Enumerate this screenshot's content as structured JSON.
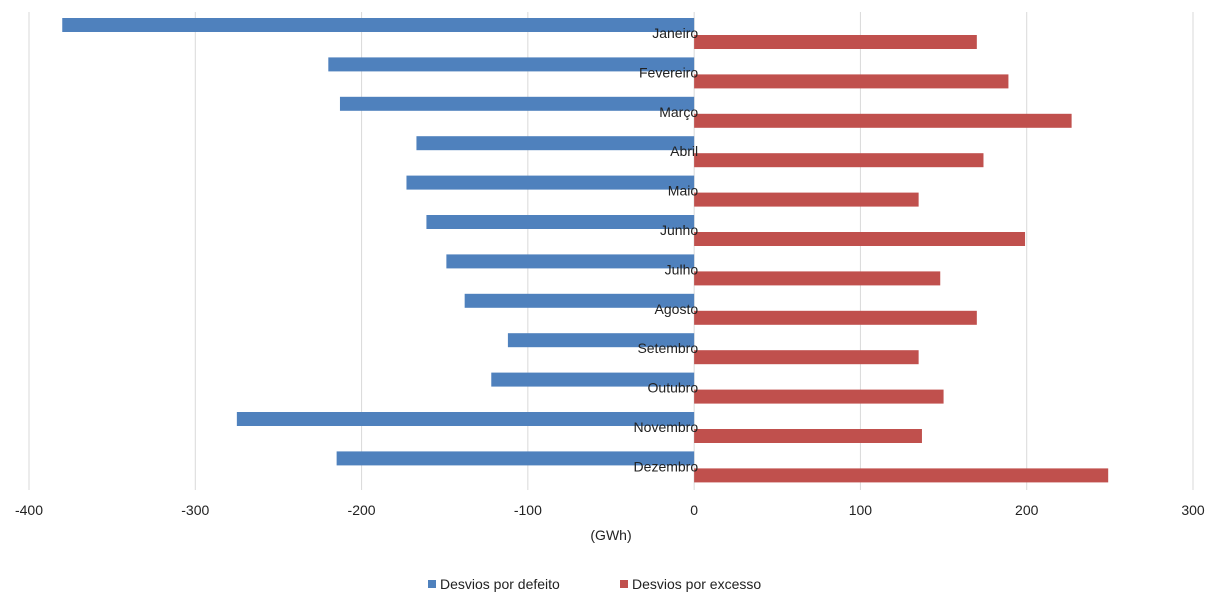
{
  "chart_data": {
    "type": "bar",
    "orientation": "horizontal",
    "categories": [
      "Janeiro",
      "Fevereiro",
      "Março",
      "Abril",
      "Maio",
      "Junho",
      "Julho",
      "Agosto",
      "Setembro",
      "Outubro",
      "Novembro",
      "Dezembro"
    ],
    "series": [
      {
        "name": "Desvios por defeito",
        "color": "#4F81BD",
        "values": [
          -380,
          -220,
          -213,
          -167,
          -173,
          -161,
          -149,
          -138,
          -112,
          -122,
          -275,
          -215
        ]
      },
      {
        "name": "Desvios por excesso",
        "color": "#C0504D",
        "values": [
          170,
          189,
          227,
          174,
          135,
          199,
          148,
          170,
          135,
          150,
          137,
          249
        ]
      }
    ],
    "xlabel": "(GWh)",
    "xlim": [
      -400,
      300
    ],
    "xticks": [
      -400,
      -300,
      -200,
      -100,
      0,
      100,
      200,
      300
    ],
    "grid": true,
    "legend": "bottom"
  }
}
